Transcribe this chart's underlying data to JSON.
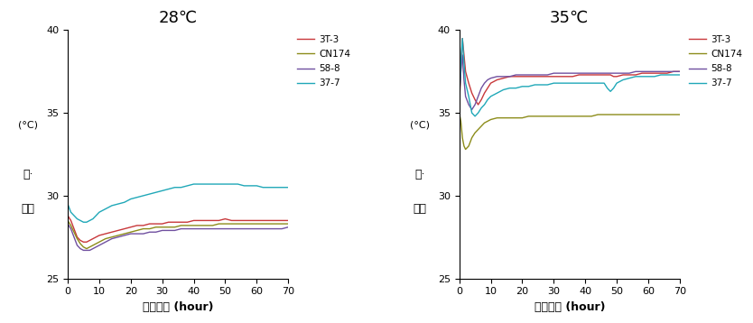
{
  "title_left": "28℃",
  "title_right": "35℃",
  "xlabel": "발효시간 (hour)",
  "ylabel_korean": "온·\n바라",
  "ylabel_unit": "(°C)",
  "ylim": [
    25,
    40
  ],
  "xlim": [
    0,
    70
  ],
  "xticks": [
    0,
    10,
    20,
    30,
    40,
    50,
    60,
    70
  ],
  "yticks": [
    25,
    30,
    35,
    40
  ],
  "legend_labels": [
    "3T-3",
    "CN174",
    "58-8",
    "37-7"
  ],
  "colors": {
    "3T-3": "#c8373a",
    "CN174": "#8c8c1a",
    "58-8": "#7050a0",
    "37-7": "#20a8b8"
  },
  "plot28": {
    "3T-3": {
      "x": [
        0,
        1,
        2,
        3,
        4,
        5,
        6,
        7,
        8,
        9,
        10,
        12,
        14,
        16,
        18,
        20,
        22,
        24,
        26,
        28,
        30,
        32,
        34,
        36,
        38,
        40,
        42,
        44,
        46,
        48,
        50,
        52,
        54,
        56,
        58,
        60,
        62,
        64,
        66,
        68,
        70
      ],
      "y": [
        28.8,
        28.5,
        28.0,
        27.5,
        27.3,
        27.2,
        27.2,
        27.3,
        27.4,
        27.5,
        27.6,
        27.7,
        27.8,
        27.9,
        28.0,
        28.1,
        28.2,
        28.2,
        28.3,
        28.3,
        28.3,
        28.4,
        28.4,
        28.4,
        28.4,
        28.5,
        28.5,
        28.5,
        28.5,
        28.5,
        28.6,
        28.5,
        28.5,
        28.5,
        28.5,
        28.5,
        28.5,
        28.5,
        28.5,
        28.5,
        28.5
      ]
    },
    "CN174": {
      "x": [
        0,
        1,
        2,
        3,
        4,
        5,
        6,
        7,
        8,
        9,
        10,
        12,
        14,
        16,
        18,
        20,
        22,
        24,
        26,
        28,
        30,
        32,
        34,
        36,
        38,
        40,
        42,
        44,
        46,
        48,
        50,
        52,
        54,
        56,
        58,
        60,
        62,
        64,
        66,
        68,
        70
      ],
      "y": [
        28.5,
        28.2,
        27.8,
        27.4,
        27.1,
        26.9,
        26.8,
        26.9,
        27.0,
        27.1,
        27.2,
        27.4,
        27.5,
        27.6,
        27.7,
        27.8,
        27.9,
        28.0,
        28.0,
        28.1,
        28.1,
        28.1,
        28.1,
        28.2,
        28.2,
        28.2,
        28.2,
        28.2,
        28.2,
        28.3,
        28.3,
        28.3,
        28.3,
        28.3,
        28.3,
        28.3,
        28.3,
        28.3,
        28.3,
        28.3,
        28.3
      ]
    },
    "58-8": {
      "x": [
        0,
        1,
        2,
        3,
        4,
        5,
        6,
        7,
        8,
        9,
        10,
        12,
        14,
        16,
        18,
        20,
        22,
        24,
        26,
        28,
        30,
        32,
        34,
        36,
        38,
        40,
        42,
        44,
        46,
        48,
        50,
        52,
        54,
        56,
        58,
        60,
        62,
        64,
        66,
        68,
        70
      ],
      "y": [
        28.3,
        28.0,
        27.5,
        27.0,
        26.8,
        26.7,
        26.7,
        26.7,
        26.8,
        26.9,
        27.0,
        27.2,
        27.4,
        27.5,
        27.6,
        27.7,
        27.7,
        27.7,
        27.8,
        27.8,
        27.9,
        27.9,
        27.9,
        28.0,
        28.0,
        28.0,
        28.0,
        28.0,
        28.0,
        28.0,
        28.0,
        28.0,
        28.0,
        28.0,
        28.0,
        28.0,
        28.0,
        28.0,
        28.0,
        28.0,
        28.1
      ]
    },
    "37-7": {
      "x": [
        0,
        1,
        2,
        3,
        4,
        5,
        6,
        7,
        8,
        9,
        10,
        12,
        14,
        16,
        18,
        20,
        22,
        24,
        26,
        28,
        30,
        32,
        34,
        36,
        38,
        40,
        42,
        44,
        46,
        48,
        50,
        52,
        54,
        56,
        58,
        60,
        62,
        64,
        66,
        68,
        70
      ],
      "y": [
        29.5,
        29.0,
        28.8,
        28.6,
        28.5,
        28.4,
        28.4,
        28.5,
        28.6,
        28.8,
        29.0,
        29.2,
        29.4,
        29.5,
        29.6,
        29.8,
        29.9,
        30.0,
        30.1,
        30.2,
        30.3,
        30.4,
        30.5,
        30.5,
        30.6,
        30.7,
        30.7,
        30.7,
        30.7,
        30.7,
        30.7,
        30.7,
        30.7,
        30.6,
        30.6,
        30.6,
        30.5,
        30.5,
        30.5,
        30.5,
        30.5
      ]
    }
  },
  "plot35": {
    "3T-3": {
      "x": [
        0,
        0.5,
        1,
        1.5,
        2,
        3,
        4,
        5,
        6,
        7,
        8,
        9,
        10,
        12,
        14,
        16,
        18,
        20,
        22,
        24,
        26,
        28,
        30,
        32,
        34,
        36,
        38,
        40,
        42,
        44,
        46,
        48,
        49,
        50,
        52,
        54,
        56,
        58,
        60,
        62,
        64,
        66,
        68,
        70
      ],
      "y": [
        35.5,
        37.5,
        39.5,
        38.5,
        37.5,
        36.8,
        36.2,
        35.8,
        35.5,
        35.8,
        36.2,
        36.5,
        36.8,
        37.0,
        37.1,
        37.2,
        37.2,
        37.2,
        37.2,
        37.2,
        37.2,
        37.2,
        37.2,
        37.2,
        37.2,
        37.2,
        37.3,
        37.3,
        37.3,
        37.3,
        37.3,
        37.3,
        37.2,
        37.2,
        37.3,
        37.3,
        37.3,
        37.4,
        37.4,
        37.4,
        37.4,
        37.4,
        37.5,
        37.5
      ]
    },
    "CN174": {
      "x": [
        0,
        0.5,
        1,
        1.5,
        2,
        3,
        4,
        5,
        6,
        7,
        8,
        9,
        10,
        12,
        14,
        16,
        18,
        20,
        22,
        24,
        26,
        28,
        30,
        32,
        34,
        36,
        38,
        40,
        42,
        44,
        46,
        48,
        50,
        52,
        54,
        56,
        58,
        60,
        62,
        64,
        66,
        68,
        70
      ],
      "y": [
        35.0,
        34.5,
        33.5,
        33.0,
        32.8,
        33.0,
        33.5,
        33.8,
        34.0,
        34.2,
        34.4,
        34.5,
        34.6,
        34.7,
        34.7,
        34.7,
        34.7,
        34.7,
        34.8,
        34.8,
        34.8,
        34.8,
        34.8,
        34.8,
        34.8,
        34.8,
        34.8,
        34.8,
        34.8,
        34.9,
        34.9,
        34.9,
        34.9,
        34.9,
        34.9,
        34.9,
        34.9,
        34.9,
        34.9,
        34.9,
        34.9,
        34.9,
        34.9
      ]
    },
    "58-8": {
      "x": [
        0,
        0.5,
        1,
        1.5,
        2,
        3,
        4,
        5,
        6,
        7,
        8,
        9,
        10,
        12,
        14,
        16,
        18,
        20,
        22,
        24,
        26,
        28,
        30,
        32,
        34,
        36,
        38,
        40,
        42,
        44,
        46,
        48,
        50,
        52,
        54,
        56,
        58,
        60,
        62,
        64,
        66,
        68,
        70
      ],
      "y": [
        36.0,
        37.5,
        38.5,
        37.0,
        36.0,
        35.5,
        35.2,
        35.5,
        36.0,
        36.5,
        36.8,
        37.0,
        37.1,
        37.2,
        37.2,
        37.2,
        37.3,
        37.3,
        37.3,
        37.3,
        37.3,
        37.3,
        37.4,
        37.4,
        37.4,
        37.4,
        37.4,
        37.4,
        37.4,
        37.4,
        37.4,
        37.4,
        37.4,
        37.4,
        37.4,
        37.5,
        37.5,
        37.5,
        37.5,
        37.5,
        37.5,
        37.5,
        37.5
      ]
    },
    "37-7": {
      "x": [
        0,
        0.5,
        1,
        1.5,
        2,
        3,
        4,
        5,
        6,
        7,
        8,
        9,
        10,
        12,
        14,
        16,
        18,
        20,
        22,
        24,
        26,
        28,
        30,
        32,
        34,
        36,
        38,
        40,
        42,
        44,
        46,
        47,
        48,
        49,
        50,
        52,
        54,
        56,
        58,
        60,
        62,
        64,
        66,
        68,
        70
      ],
      "y": [
        35.8,
        38.0,
        39.5,
        38.0,
        36.8,
        36.0,
        35.0,
        34.8,
        35.0,
        35.3,
        35.5,
        35.8,
        36.0,
        36.2,
        36.4,
        36.5,
        36.5,
        36.6,
        36.6,
        36.7,
        36.7,
        36.7,
        36.8,
        36.8,
        36.8,
        36.8,
        36.8,
        36.8,
        36.8,
        36.8,
        36.8,
        36.5,
        36.3,
        36.5,
        36.8,
        37.0,
        37.1,
        37.2,
        37.2,
        37.2,
        37.2,
        37.3,
        37.3,
        37.3,
        37.3
      ]
    }
  }
}
